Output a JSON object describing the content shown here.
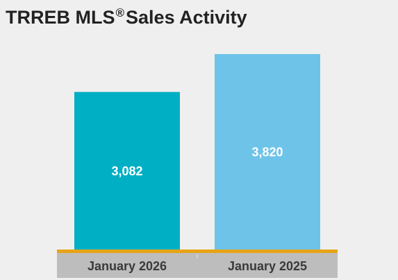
{
  "chart_data": {
    "type": "bar",
    "title": "TRREB MLS",
    "title_mark": "®",
    "title_suffix": "Sales Activity",
    "categories": [
      "January 2026",
      "January 2025"
    ],
    "values": [
      3082,
      3820
    ],
    "value_labels": [
      "3,082",
      "3,820"
    ],
    "ylim": [
      0,
      3820
    ],
    "colors": [
      "#00afc4",
      "#6ec3e8"
    ],
    "baseline_color": "#e8a317",
    "axis_band_color": "#bdbdbd",
    "xlabel": "",
    "ylabel": "",
    "grid": false,
    "legend": "none"
  }
}
